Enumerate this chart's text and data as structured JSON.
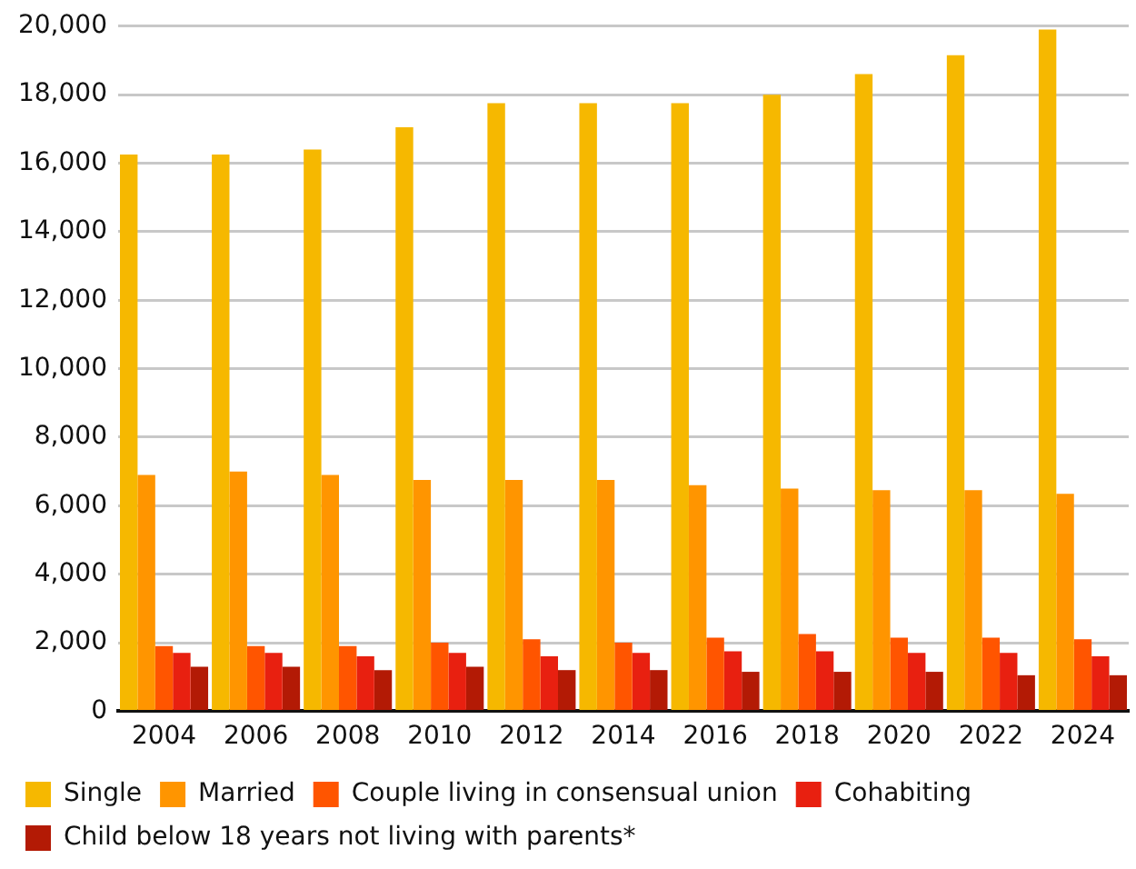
{
  "chart_data": {
    "type": "bar",
    "categories": [
      "2004",
      "2006",
      "2008",
      "2010",
      "2012",
      "2014",
      "2016",
      "2018",
      "2020",
      "2022",
      "2024"
    ],
    "series": [
      {
        "name": "Single",
        "color": "#f6b800",
        "values": [
          16250,
          16250,
          16400,
          17050,
          17750,
          17750,
          17750,
          18000,
          18600,
          19150,
          19900
        ]
      },
      {
        "name": "Married",
        "color": "#ff9500",
        "values": [
          6900,
          7000,
          6900,
          6750,
          6750,
          6750,
          6600,
          6500,
          6450,
          6450,
          6350
        ]
      },
      {
        "name": "Couple living in consensual union",
        "color": "#ff5500",
        "values": [
          1900,
          1900,
          1900,
          2000,
          2100,
          2000,
          2150,
          2250,
          2150,
          2150,
          2100
        ]
      },
      {
        "name": "Cohabiting",
        "color": "#e82010",
        "values": [
          1700,
          1700,
          1600,
          1700,
          1600,
          1700,
          1750,
          1750,
          1700,
          1700,
          1600
        ]
      },
      {
        "name": "Child below 18 years not living with parents*",
        "color": "#b31a05",
        "values": [
          1300,
          1300,
          1200,
          1300,
          1200,
          1200,
          1150,
          1150,
          1150,
          1050,
          1050
        ]
      }
    ],
    "ylim": [
      0,
      20000
    ],
    "yticks": [
      0,
      {
        "value": 2000,
        "label": "2,000"
      },
      {
        "value": 4000,
        "label": "4,000"
      },
      {
        "value": 6000,
        "label": "6,000"
      },
      {
        "value": 8000,
        "label": "8,000"
      },
      {
        "value": 10000,
        "label": "10,000"
      },
      {
        "value": 12000,
        "label": "12,000"
      },
      {
        "value": 14000,
        "label": "14,000"
      },
      {
        "value": 16000,
        "label": "16,000"
      },
      {
        "value": 18000,
        "label": "18,000"
      },
      {
        "value": 20000,
        "label": "20,000"
      }
    ],
    "grid": "y",
    "legend": "bottom"
  }
}
